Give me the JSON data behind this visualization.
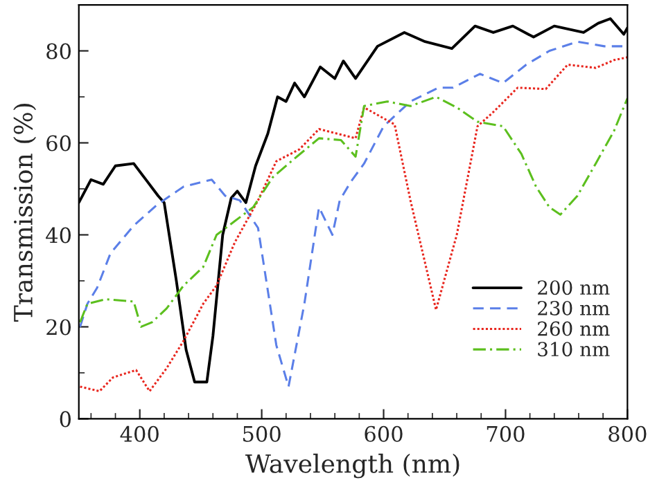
{
  "chart_data": {
    "type": "line",
    "xlabel": "Wavelength (nm)",
    "ylabel": "Transmission (%)",
    "xlim": [
      350,
      800
    ],
    "ylim": [
      0,
      90
    ],
    "xticks": [
      400,
      500,
      600,
      700,
      800
    ],
    "yticks": [
      0,
      20,
      40,
      60,
      80
    ],
    "grid": false,
    "legend": "bottom right",
    "marker": "none",
    "series": [
      {
        "name": "200 nm",
        "color": "#000000",
        "line_style": "solid",
        "x": [
          350,
          360,
          370,
          380,
          395,
          405,
          415,
          420,
          430,
          438,
          445,
          455,
          460,
          468,
          475,
          480,
          487,
          495,
          505,
          513,
          520,
          527,
          535,
          548,
          560,
          567,
          577,
          595,
          617,
          634,
          656,
          675,
          690,
          706,
          723,
          740,
          764,
          776,
          786,
          797,
          800
        ],
        "values": [
          47,
          52,
          51,
          55,
          55.5,
          52,
          48.5,
          47,
          30,
          15,
          8,
          8,
          18,
          40,
          48,
          49.5,
          47,
          55,
          62,
          70,
          69,
          73,
          70,
          76.5,
          74,
          77.8,
          74,
          81,
          84,
          82,
          80.5,
          85.4,
          84,
          85.4,
          83,
          85.4,
          84,
          86,
          87,
          83.6,
          85
        ]
      },
      {
        "name": "230 nm",
        "color": "#5b7fe8",
        "line_style": "dashed",
        "x": [
          351,
          357,
          365,
          376,
          395,
          414,
          436,
          459,
          470,
          482,
          497,
          512,
          522,
          535,
          547,
          558,
          564,
          573,
          584,
          600,
          622,
          645,
          657,
          679,
          698,
          717,
          736,
          759,
          781,
          798
        ],
        "values": [
          20,
          25,
          28.5,
          36,
          42,
          46.5,
          50.5,
          52,
          48.5,
          47.5,
          41.5,
          16,
          7,
          25,
          46,
          40,
          47.5,
          51.5,
          55.5,
          63.6,
          69,
          72,
          72,
          75,
          73,
          77,
          80,
          82,
          81,
          81
        ]
      },
      {
        "name": "260 nm",
        "color": "#e8261e",
        "line_style": "dotted",
        "x": [
          351,
          367,
          378,
          397,
          408,
          422,
          436,
          452,
          463,
          478,
          497,
          512,
          531,
          547,
          577,
          584,
          609,
          622,
          643,
          660,
          677,
          690,
          710,
          733,
          751,
          774,
          789,
          800
        ],
        "values": [
          7,
          6,
          9,
          10.6,
          6,
          11,
          17,
          25,
          29,
          38.4,
          47.5,
          56,
          58.6,
          63,
          61,
          67.7,
          64,
          47.5,
          23.7,
          40,
          63.6,
          66.7,
          72,
          71.7,
          77,
          76.3,
          78,
          78.6
        ]
      },
      {
        "name": "310 nm",
        "color": "#5cbf1e",
        "line_style": "dashdot",
        "x": [
          351,
          357,
          372,
          395,
          401,
          410,
          422,
          436,
          452,
          463,
          478,
          493,
          509,
          527,
          547,
          565,
          577,
          584,
          603,
          622,
          643,
          660,
          677,
          698,
          713,
          725,
          736,
          745,
          759,
          774,
          789,
          800
        ],
        "values": [
          21,
          25,
          26,
          25.5,
          20,
          21,
          24,
          29,
          33,
          40,
          43,
          46,
          52.5,
          56.6,
          61,
          60.6,
          57,
          68,
          69,
          68,
          70,
          67.7,
          64.6,
          63.6,
          57.6,
          50.5,
          46,
          44.4,
          48.5,
          55.5,
          62.6,
          69.7
        ]
      }
    ]
  }
}
